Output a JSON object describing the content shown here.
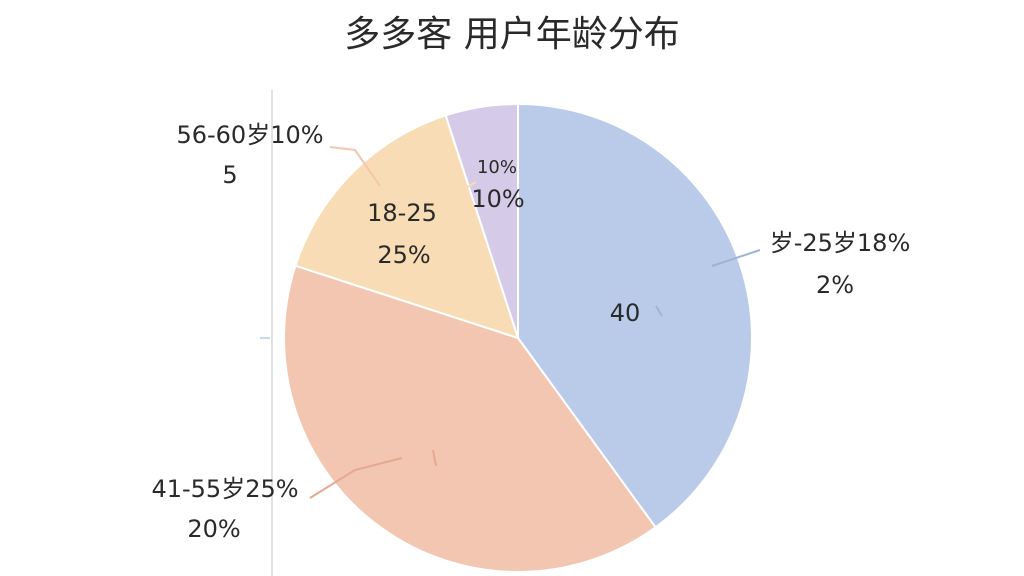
{
  "chart_data": {
    "type": "pie",
    "title": "多多客  用户年龄分布",
    "values": [
      40,
      40,
      15,
      5
    ],
    "colors": [
      "#b9cbe8",
      "#f2c6b0",
      "#f8dcb5",
      "#d5cbe8"
    ],
    "annotations": [
      "56-60岁10%",
      "5",
      "18-25",
      "25%",
      "10%",
      "10%",
      "岁-25岁18%",
      "2%",
      "40",
      "41-55岁25%",
      "20%"
    ]
  }
}
